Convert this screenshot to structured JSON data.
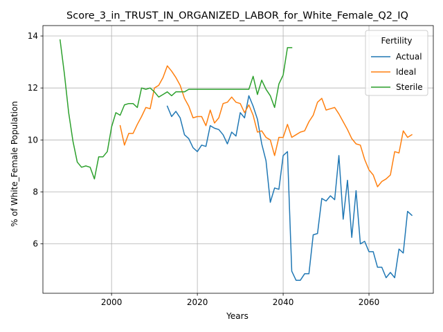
{
  "chart_data": {
    "type": "line",
    "title": "Score_3_in_TRUST_IN_ORGANIZED_LABOR_for_White_Female_Q2_IQ",
    "xlabel": "Years",
    "ylabel": "% of White_Female Population",
    "xlim": [
      1984,
      2075
    ],
    "ylim": [
      4.1,
      14.4
    ],
    "xticks": [
      2000,
      2020,
      2040,
      2060
    ],
    "yticks": [
      6,
      8,
      10,
      12,
      14
    ],
    "grid": true,
    "legend": {
      "title": "Fertility",
      "placement": "top-right"
    },
    "series": [
      {
        "name": "Actual",
        "color": "#1f77b4",
        "x": [
          2013,
          2014,
          2015,
          2016,
          2017,
          2018,
          2019,
          2020,
          2021,
          2022,
          2023,
          2024,
          2025,
          2026,
          2027,
          2028,
          2029,
          2030,
          2031,
          2032,
          2033,
          2034,
          2035,
          2036,
          2037,
          2038,
          2039,
          2040,
          2041,
          2042,
          2043,
          2044,
          2045,
          2046,
          2047,
          2048,
          2049,
          2050,
          2051,
          2052,
          2053,
          2054,
          2055,
          2056,
          2057,
          2058,
          2059,
          2060,
          2061,
          2062,
          2063,
          2064,
          2065,
          2066,
          2067,
          2068,
          2069,
          2070
        ],
        "values": [
          11.3,
          10.9,
          11.1,
          10.85,
          10.2,
          10.05,
          9.7,
          9.55,
          9.8,
          9.75,
          10.55,
          10.45,
          10.4,
          10.2,
          9.85,
          10.3,
          10.15,
          11.05,
          10.85,
          11.7,
          11.3,
          10.8,
          9.85,
          9.2,
          7.6,
          8.15,
          8.1,
          9.4,
          9.55,
          4.95,
          4.6,
          4.6,
          4.85,
          4.85,
          6.35,
          6.4,
          7.75,
          7.65,
          7.85,
          7.7,
          9.4,
          6.95,
          8.45,
          6.25,
          8.05,
          6.0,
          6.1,
          5.7,
          5.7,
          5.1,
          5.1,
          4.7,
          4.9,
          4.7,
          5.8,
          5.65,
          7.25,
          7.1
        ]
      },
      {
        "name": "Ideal",
        "color": "#ff7f0e",
        "x": [
          2002,
          2003,
          2004,
          2005,
          2006,
          2007,
          2008,
          2009,
          2010,
          2011,
          2012,
          2013,
          2014,
          2015,
          2016,
          2017,
          2018,
          2019,
          2020,
          2021,
          2022,
          2023,
          2024,
          2025,
          2026,
          2027,
          2028,
          2029,
          2030,
          2031,
          2032,
          2033,
          2034,
          2035,
          2036,
          2037,
          2038,
          2039,
          2040,
          2041,
          2042,
          2043,
          2044,
          2045,
          2046,
          2047,
          2048,
          2049,
          2050,
          2051,
          2052,
          2053,
          2054,
          2055,
          2056,
          2057,
          2058,
          2059,
          2060,
          2061,
          2062,
          2063,
          2064,
          2065,
          2066,
          2067,
          2068,
          2069,
          2070
        ],
        "values": [
          10.55,
          9.8,
          10.25,
          10.25,
          10.6,
          10.9,
          11.25,
          11.2,
          12.0,
          12.1,
          12.4,
          12.85,
          12.65,
          12.4,
          12.1,
          11.6,
          11.3,
          10.85,
          10.9,
          10.9,
          10.55,
          11.15,
          10.65,
          10.85,
          11.4,
          11.45,
          11.65,
          11.45,
          11.4,
          11.05,
          11.35,
          10.95,
          10.3,
          10.35,
          10.1,
          10.0,
          9.4,
          10.1,
          10.1,
          10.6,
          10.1,
          10.2,
          10.3,
          10.35,
          10.7,
          10.95,
          11.45,
          11.6,
          11.15,
          11.2,
          11.25,
          11.0,
          10.7,
          10.4,
          10.05,
          9.85,
          9.8,
          9.25,
          8.85,
          8.65,
          8.2,
          8.4,
          8.5,
          8.65,
          9.55,
          9.5,
          10.35,
          10.1,
          10.2
        ]
      },
      {
        "name": "Sterile",
        "color": "#2ca02c",
        "x": [
          1988,
          1989,
          1990,
          1991,
          1992,
          1993,
          1994,
          1995,
          1996,
          1997,
          1998,
          1999,
          2000,
          2001,
          2002,
          2003,
          2004,
          2005,
          2006,
          2007,
          2008,
          2009,
          2010,
          2011,
          2012,
          2013,
          2014,
          2015,
          2016,
          2017,
          2018,
          2019,
          2020,
          2021,
          2022,
          2023,
          2024,
          2025,
          2026,
          2027,
          2028,
          2029,
          2030,
          2031,
          2032,
          2033,
          2034,
          2035,
          2036,
          2037,
          2038,
          2039,
          2040,
          2041,
          2042
        ],
        "values": [
          13.85,
          12.55,
          11.05,
          9.95,
          9.15,
          8.95,
          9.0,
          8.95,
          8.5,
          9.35,
          9.35,
          9.55,
          10.5,
          11.05,
          10.95,
          11.35,
          11.4,
          11.4,
          11.25,
          12.0,
          11.95,
          12.0,
          11.85,
          11.65,
          11.75,
          11.85,
          11.7,
          11.85,
          11.85,
          11.85,
          11.95,
          11.95,
          11.95,
          11.95,
          11.95,
          11.95,
          11.95,
          11.95,
          11.95,
          11.95,
          11.95,
          11.95,
          11.95,
          11.95,
          11.95,
          12.45,
          11.75,
          12.3,
          11.95,
          11.7,
          11.25,
          12.15,
          12.5,
          13.55,
          13.55
        ]
      }
    ]
  }
}
